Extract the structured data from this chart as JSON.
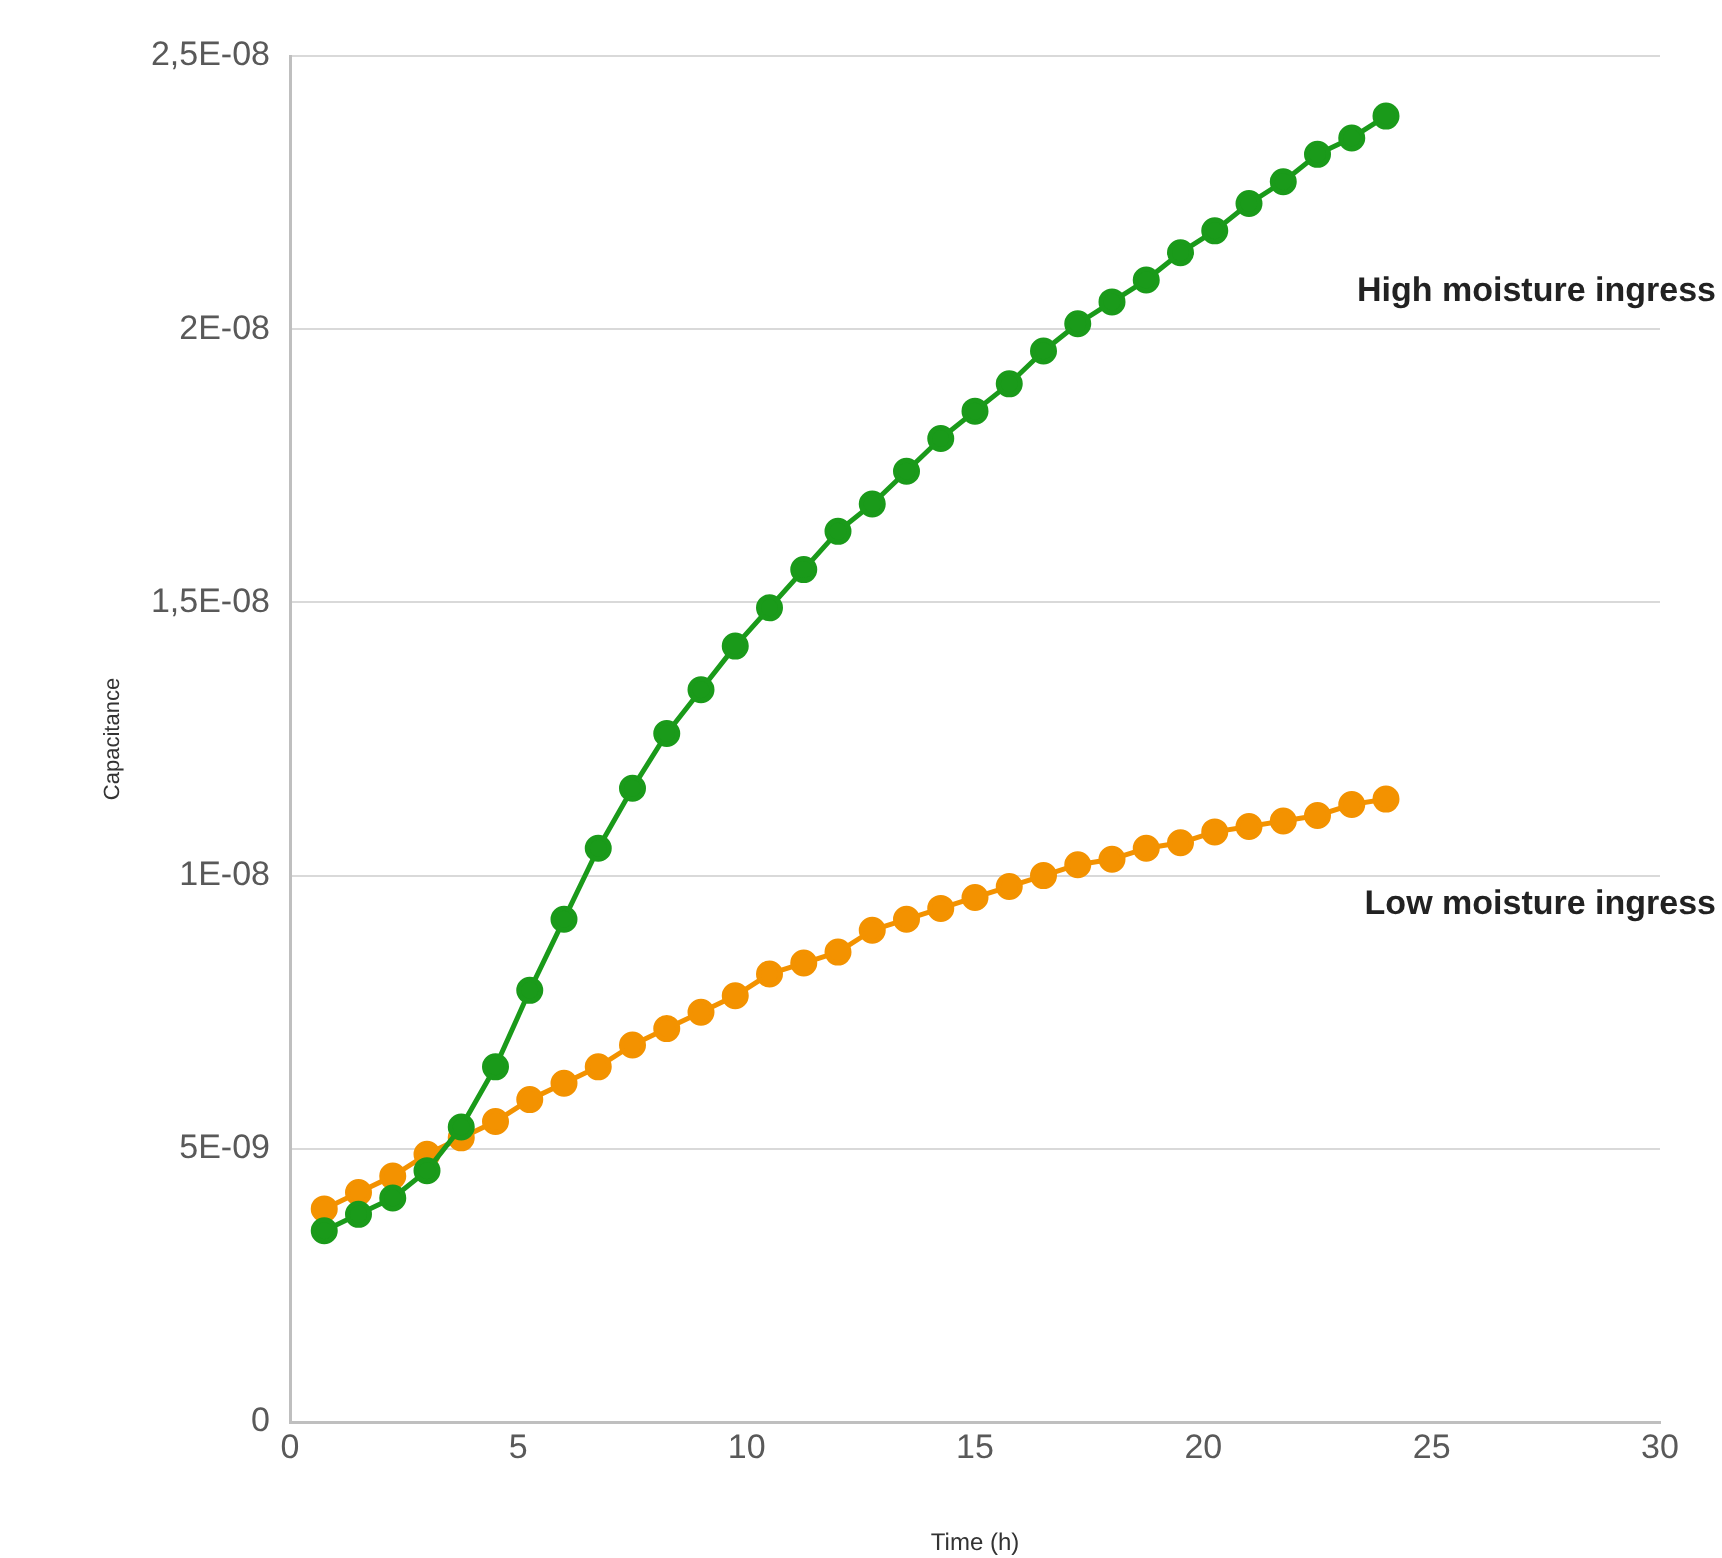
{
  "chart_data": {
    "type": "line",
    "xlabel": "Time (h)",
    "ylabel": "Capacitance",
    "xlim": [
      0,
      30
    ],
    "xticks": [
      0,
      5,
      10,
      15,
      20,
      25,
      30
    ],
    "ylim": [
      0,
      2.5e-08
    ],
    "yticks": [
      0,
      {
        "value": 5e-09,
        "label": "5E-09"
      },
      {
        "value": 1e-08,
        "label": "1E-08"
      },
      {
        "value": 1.5e-08,
        "label": "1,5E-08"
      },
      {
        "value": 2e-08,
        "label": "2E-08"
      },
      {
        "value": 2.5e-08,
        "label": "2,5E-08"
      }
    ],
    "x": [
      0.75,
      1.5,
      2.25,
      3,
      3.75,
      4.5,
      5.25,
      6,
      6.75,
      7.5,
      8.25,
      9,
      9.75,
      10.5,
      11.25,
      12,
      12.75,
      13.5,
      14.25,
      15,
      15.75,
      16.5,
      17.25,
      18,
      18.75,
      19.5,
      20.25,
      21,
      21.75,
      22.5,
      23.25,
      24
    ],
    "series": [
      {
        "name": "High moisture ingress",
        "color": "#1a9a1a",
        "values": [
          3.5e-09,
          3.8e-09,
          4.1e-09,
          4.6e-09,
          5.4e-09,
          6.5e-09,
          7.9e-09,
          9.2e-09,
          1.05e-08,
          1.16e-08,
          1.26e-08,
          1.34e-08,
          1.42e-08,
          1.49e-08,
          1.56e-08,
          1.63e-08,
          1.68e-08,
          1.74e-08,
          1.8e-08,
          1.85e-08,
          1.9e-08,
          1.96e-08,
          2.01e-08,
          2.05e-08,
          2.09e-08,
          2.14e-08,
          2.18e-08,
          2.23e-08,
          2.27e-08,
          2.32e-08,
          2.35e-08,
          2.39e-08
        ]
      },
      {
        "name": "Low moisture ingress",
        "color": "#f39200",
        "values": [
          3.9e-09,
          4.2e-09,
          4.5e-09,
          4.9e-09,
          5.2e-09,
          5.5e-09,
          5.9e-09,
          6.2e-09,
          6.5e-09,
          6.9e-09,
          7.2e-09,
          7.5e-09,
          7.8e-09,
          8.2e-09,
          8.4e-09,
          8.6e-09,
          9e-09,
          9.2e-09,
          9.4e-09,
          9.6e-09,
          9.8e-09,
          1e-08,
          1.02e-08,
          1.03e-08,
          1.05e-08,
          1.06e-08,
          1.08e-08,
          1.09e-08,
          1.1e-08,
          1.11e-08,
          1.13e-08,
          1.14e-08
        ]
      }
    ],
    "grid": "y",
    "legend": false,
    "marker": "circle",
    "line_style": "solid"
  }
}
